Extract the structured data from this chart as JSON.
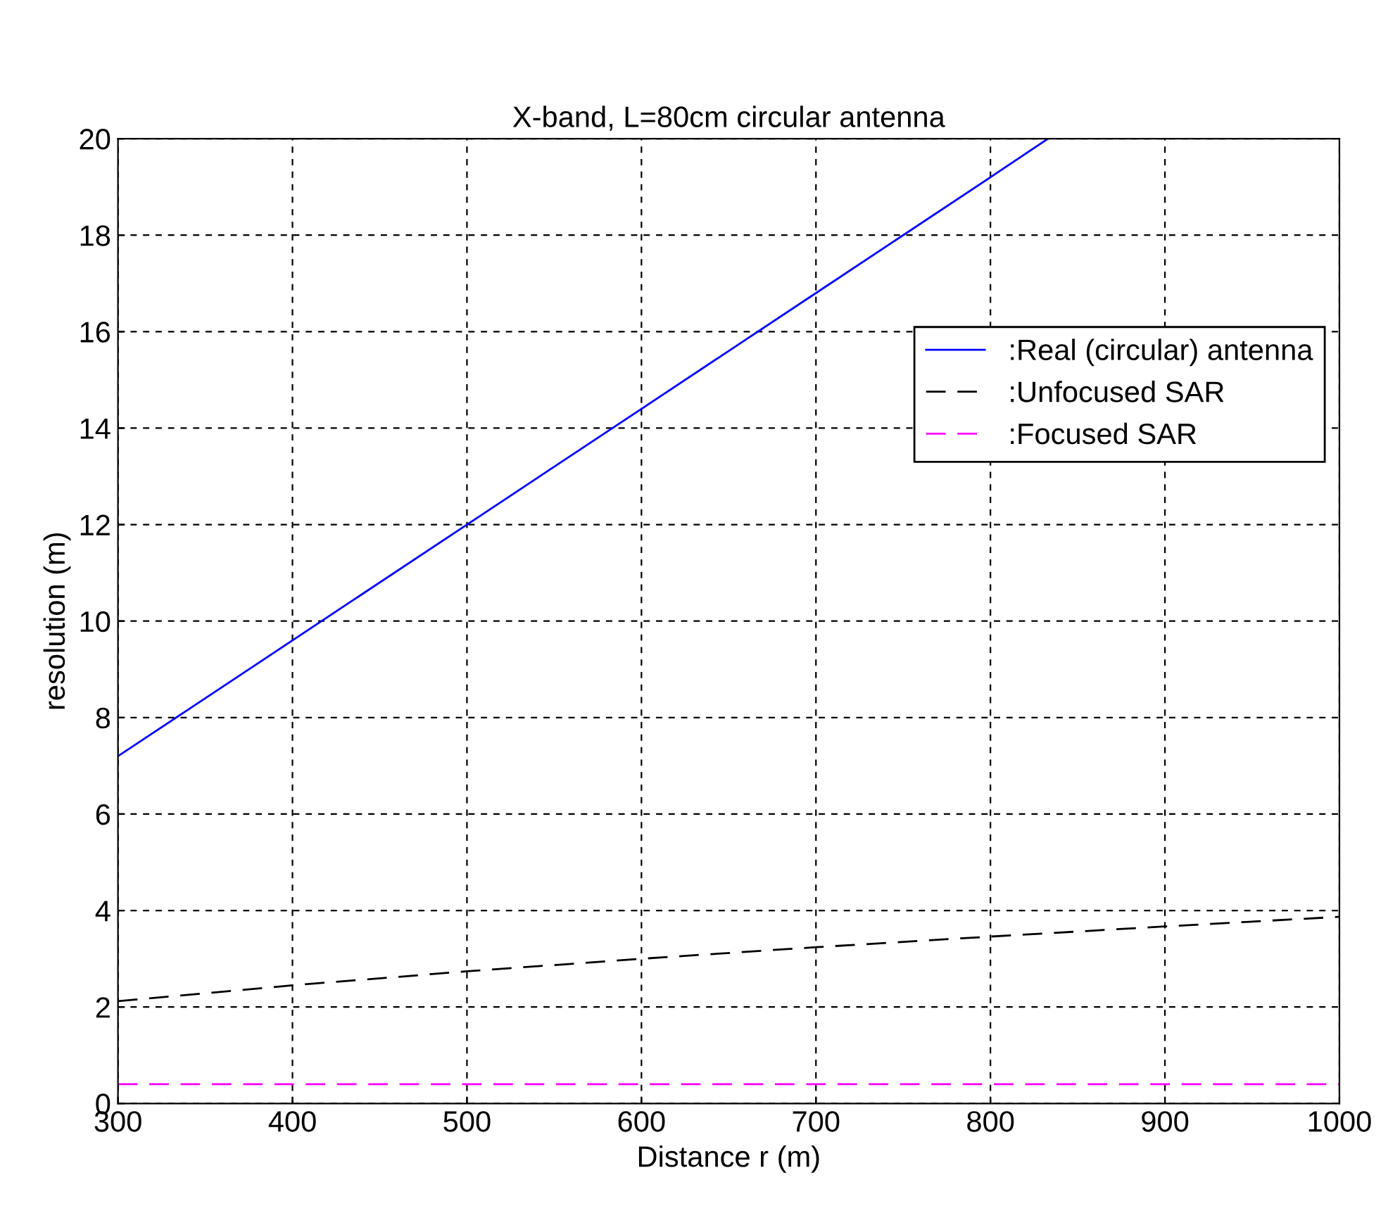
{
  "chart_data": {
    "type": "line",
    "title": "X-band, L=80cm circular antenna",
    "xlabel": "Distance r (m)",
    "ylabel": "resolution (m)",
    "series": [
      {
        "name": ":Real (circular) antenna",
        "color": "#0000ff",
        "line_style": "solid",
        "x": [
          300,
          400,
          500,
          600,
          700,
          800,
          833
        ],
        "values": [
          7.2,
          9.6,
          12,
          14.4,
          16.8,
          19.2,
          20
        ]
      },
      {
        "name": ":Unfocused SAR",
        "color": "#000000",
        "line_style": "dashed",
        "x": [
          300,
          400,
          500,
          600,
          700,
          800,
          900,
          1000
        ],
        "values": [
          2.12,
          2.45,
          2.74,
          3.0,
          3.24,
          3.46,
          3.67,
          3.87
        ]
      },
      {
        "name": ":Focused SAR",
        "color": "#ff00ff",
        "line_style": "dashed",
        "x": [
          300,
          1000
        ],
        "values": [
          0.4,
          0.4
        ]
      }
    ],
    "xlim": [
      300,
      1000
    ],
    "xticks": [
      300,
      400,
      500,
      600,
      700,
      800,
      900,
      1000
    ],
    "ylim": [
      0,
      20
    ],
    "yticks": [
      0,
      2,
      4,
      6,
      8,
      10,
      12,
      14,
      16,
      18,
      20
    ],
    "grid": true,
    "legend": "right",
    "marker": "none"
  }
}
